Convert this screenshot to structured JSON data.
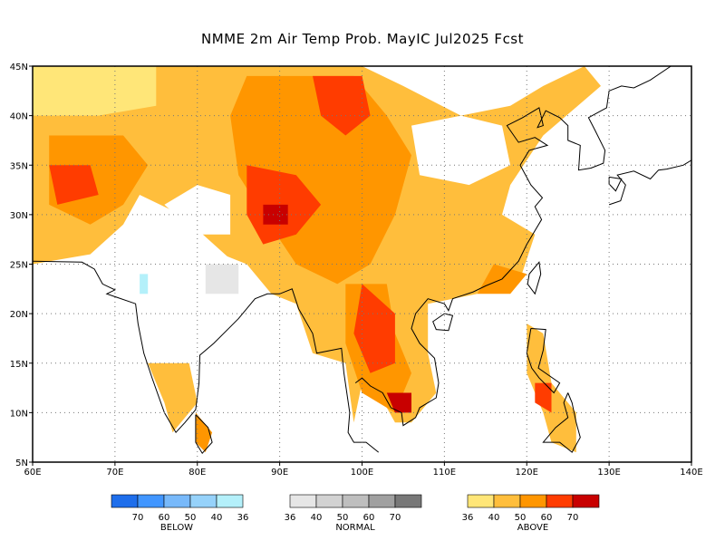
{
  "title": "NMME 2m Air Temp Prob. MayIC  Jul2025 Fcst",
  "map": {
    "lon_range": [
      60,
      140
    ],
    "lat_range": [
      5,
      45
    ],
    "lon_ticks": [
      "60E",
      "70E",
      "80E",
      "90E",
      "100E",
      "110E",
      "120E",
      "130E",
      "140E"
    ],
    "lat_ticks": [
      "45N",
      "40N",
      "35N",
      "30N",
      "25N",
      "20N",
      "15N",
      "10N",
      "5N"
    ]
  },
  "legend": {
    "below": {
      "label": "BELOW",
      "colors": [
        "#1e6eeb",
        "#4196ff",
        "#78b9fa",
        "#96d2fa",
        "#b4f0fa"
      ],
      "values": [
        "70",
        "60",
        "50",
        "40",
        "36"
      ]
    },
    "normal": {
      "label": "NORMAL",
      "colors": [
        "#e6e6e6",
        "#d2d2d2",
        "#bebebe",
        "#a0a0a0",
        "#787878"
      ],
      "values": [
        "36",
        "40",
        "50",
        "60",
        "70"
      ]
    },
    "above": {
      "label": "ABOVE",
      "colors": [
        "#ffe678",
        "#ffbe3c",
        "#ff9600",
        "#ff3c00",
        "#c80000"
      ],
      "values": [
        "36",
        "40",
        "50",
        "60",
        "70"
      ]
    }
  }
}
